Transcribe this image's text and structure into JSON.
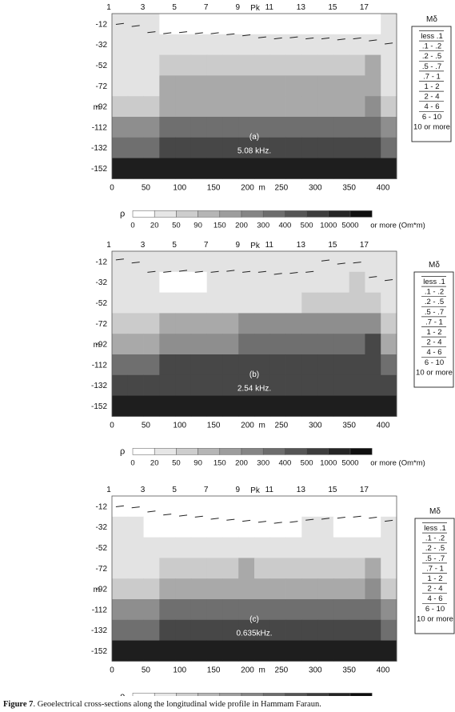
{
  "figure": {
    "caption_label": "Figure 7",
    "caption_text": ". Geoelectrical cross-sections along the longitudinal wide profile in Hammam Faraun."
  },
  "common": {
    "pk_label": "Pk",
    "pk_ticks": [
      "1",
      "3",
      "5",
      "7",
      "9",
      "11",
      "13",
      "15",
      "17"
    ],
    "pk_positions": [
      1,
      3,
      5,
      7,
      9,
      11,
      13,
      15,
      17
    ],
    "depth_ticks": [
      "-12",
      "-32",
      "-52",
      "-72",
      "-92",
      "-112",
      "-132",
      "-152"
    ],
    "depth_unit": "m",
    "x_ticks": [
      "0",
      "50",
      "100",
      "150",
      "200",
      "250",
      "300",
      "350",
      "400"
    ],
    "x_unit": "m",
    "n_cols": 18,
    "n_rows": 8,
    "legend_rho_label": "ρ",
    "legend_rho_ticks": [
      "0",
      "20",
      "50",
      "90",
      "150",
      "200",
      "300",
      "400",
      "500",
      "1000",
      "5000"
    ],
    "legend_rho_tail": "or more (Om*m)",
    "legend_rho_colors": [
      "#ffffff",
      "#e6e6e6",
      "#cdcdcd",
      "#b5b5b5",
      "#9d9d9d",
      "#858585",
      "#6d6d6d",
      "#555555",
      "#3d3d3d",
      "#252525",
      "#0f0f0f"
    ],
    "legend_m_title": "Mδ",
    "legend_m_items": [
      "less .1",
      ".1 - .2",
      ".2 - .5",
      ".5 - .7",
      ".7 - 1",
      "1 - 2",
      "2 - 4",
      "4 - 6",
      "6 - 10",
      "10 or more"
    ],
    "shade_palette": [
      "#ffffff",
      "#e3e3e3",
      "#cbcbcb",
      "#a9a9a9",
      "#8e8e8e",
      "#6f6f6f",
      "#474747",
      "#1e1e1e"
    ]
  },
  "chart_data": [
    {
      "type": "heatmap",
      "panel_label": "(a)",
      "frequency": "5.08 kHz.",
      "pk_stations": [
        1,
        2,
        3,
        4,
        5,
        6,
        7,
        8,
        9,
        10,
        11,
        12,
        13,
        14,
        15,
        16,
        17,
        18
      ],
      "depth_rows": [
        "-12",
        "-32",
        "-52",
        "-72",
        "-92",
        "-112",
        "-132",
        "-152"
      ],
      "shade_levels": [
        [
          1,
          1,
          1,
          0,
          0,
          0,
          0,
          0,
          0,
          0,
          0,
          0,
          0,
          0,
          0,
          0,
          0,
          1
        ],
        [
          1,
          1,
          1,
          1,
          1,
          1,
          1,
          1,
          1,
          1,
          1,
          1,
          1,
          1,
          1,
          1,
          1,
          1
        ],
        [
          1,
          1,
          1,
          2,
          2,
          2,
          2,
          2,
          2,
          2,
          2,
          2,
          2,
          2,
          2,
          2,
          3,
          1
        ],
        [
          1,
          1,
          1,
          3,
          3,
          3,
          3,
          3,
          3,
          3,
          3,
          3,
          3,
          3,
          3,
          3,
          3,
          1
        ],
        [
          2,
          2,
          2,
          3,
          3,
          3,
          3,
          3,
          3,
          3,
          3,
          3,
          3,
          3,
          3,
          3,
          4,
          2
        ],
        [
          4,
          4,
          4,
          5,
          5,
          5,
          5,
          5,
          5,
          5,
          5,
          5,
          5,
          5,
          5,
          5,
          5,
          4
        ],
        [
          5,
          5,
          5,
          6,
          6,
          6,
          6,
          6,
          6,
          6,
          6,
          6,
          6,
          6,
          6,
          6,
          6,
          5
        ],
        [
          7,
          7,
          7,
          7,
          7,
          7,
          7,
          7,
          7,
          7,
          7,
          7,
          7,
          7,
          7,
          7,
          7,
          7
        ]
      ],
      "dash_depth": [
        -12,
        -14,
        -20,
        -21,
        -20,
        -21,
        -21,
        -22,
        -23,
        -25,
        -26,
        -25,
        -26,
        -26,
        -27,
        -26,
        -28,
        -31
      ]
    },
    {
      "type": "heatmap",
      "panel_label": "(b)",
      "frequency": "2.54 kHz.",
      "pk_stations": [
        1,
        2,
        3,
        4,
        5,
        6,
        7,
        8,
        9,
        10,
        11,
        12,
        13,
        14,
        15,
        16,
        17,
        18
      ],
      "depth_rows": [
        "-12",
        "-32",
        "-52",
        "-72",
        "-92",
        "-112",
        "-132",
        "-152"
      ],
      "shade_levels": [
        [
          1,
          1,
          1,
          1,
          1,
          1,
          1,
          1,
          1,
          1,
          1,
          1,
          1,
          1,
          1,
          1,
          1,
          1
        ],
        [
          1,
          1,
          1,
          0,
          0,
          0,
          1,
          1,
          1,
          1,
          1,
          1,
          1,
          1,
          1,
          2,
          1,
          1
        ],
        [
          1,
          1,
          1,
          1,
          1,
          1,
          1,
          1,
          1,
          1,
          1,
          1,
          2,
          2,
          2,
          2,
          2,
          1
        ],
        [
          2,
          2,
          2,
          3,
          3,
          3,
          3,
          3,
          4,
          4,
          4,
          4,
          4,
          4,
          4,
          4,
          4,
          2
        ],
        [
          3,
          3,
          3,
          4,
          4,
          4,
          4,
          4,
          5,
          5,
          5,
          5,
          5,
          5,
          5,
          5,
          6,
          3
        ],
        [
          5,
          5,
          5,
          6,
          6,
          6,
          6,
          6,
          6,
          6,
          6,
          6,
          6,
          6,
          6,
          6,
          6,
          5
        ],
        [
          6,
          6,
          6,
          6,
          6,
          6,
          6,
          6,
          6,
          6,
          6,
          6,
          6,
          6,
          6,
          6,
          6,
          6
        ],
        [
          7,
          7,
          7,
          7,
          7,
          7,
          7,
          7,
          7,
          7,
          7,
          7,
          7,
          7,
          7,
          7,
          7,
          7
        ]
      ],
      "dash_depth": [
        -10,
        -13,
        -22,
        -22,
        -21,
        -22,
        -22,
        -21,
        -22,
        -22,
        -24,
        -23,
        -22,
        -11,
        -14,
        -13,
        -27,
        -30
      ]
    },
    {
      "type": "heatmap",
      "panel_label": "(c)",
      "frequency": "0.635kHz.",
      "pk_stations": [
        1,
        2,
        3,
        4,
        5,
        6,
        7,
        8,
        9,
        10,
        11,
        12,
        13,
        14,
        15,
        16,
        17,
        18
      ],
      "depth_rows": [
        "-12",
        "-32",
        "-52",
        "-72",
        "-92",
        "-112",
        "-132",
        "-152"
      ],
      "shade_levels": [
        [
          0,
          0,
          0,
          0,
          0,
          0,
          0,
          0,
          0,
          0,
          0,
          0,
          0,
          0,
          0,
          0,
          0,
          0
        ],
        [
          1,
          1,
          0,
          0,
          0,
          0,
          0,
          0,
          0,
          0,
          0,
          0,
          1,
          1,
          0,
          0,
          0,
          1
        ],
        [
          1,
          1,
          1,
          1,
          1,
          1,
          1,
          1,
          1,
          1,
          1,
          1,
          1,
          1,
          1,
          1,
          1,
          1
        ],
        [
          1,
          1,
          1,
          2,
          2,
          2,
          2,
          2,
          3,
          2,
          2,
          2,
          2,
          2,
          2,
          2,
          3,
          1
        ],
        [
          2,
          2,
          2,
          3,
          3,
          3,
          3,
          3,
          3,
          3,
          3,
          3,
          3,
          3,
          3,
          3,
          4,
          2
        ],
        [
          4,
          4,
          4,
          5,
          5,
          5,
          5,
          5,
          5,
          5,
          5,
          5,
          5,
          5,
          5,
          5,
          5,
          4
        ],
        [
          5,
          5,
          5,
          6,
          6,
          6,
          6,
          6,
          6,
          6,
          6,
          6,
          6,
          6,
          6,
          6,
          6,
          5
        ],
        [
          7,
          7,
          7,
          7,
          7,
          7,
          7,
          7,
          7,
          7,
          7,
          7,
          7,
          7,
          7,
          7,
          7,
          7
        ]
      ],
      "dash_depth": [
        -12,
        -13,
        -17,
        -20,
        -21,
        -22,
        -24,
        -25,
        -26,
        -27,
        -28,
        -27,
        -25,
        -24,
        -23,
        -22,
        -23,
        -26
      ]
    }
  ]
}
